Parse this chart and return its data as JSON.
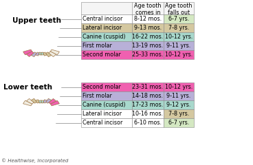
{
  "title_upper": "Upper teeth",
  "title_lower": "Lower teeth",
  "header_col1": "Age tooth\ncomes in",
  "header_col2": "Age tooth\nfalls out",
  "upper_teeth": [
    {
      "name": "Central incisor",
      "comes_in": "8-12 mos.",
      "falls_out": "6-7 yrs.",
      "name_color": "#ffffff",
      "comes_color": "#ffffff",
      "falls_color": "#d4e8c2"
    },
    {
      "name": "Lateral incisor",
      "comes_in": "9-13 mos.",
      "falls_out": "7-8 yrs.",
      "name_color": "#d4c8a0",
      "comes_color": "#d4c8a0",
      "falls_color": "#d4c8a0"
    },
    {
      "name": "Canine (cuspid)",
      "comes_in": "16-22 mos.",
      "falls_out": "10-12 yrs.",
      "name_color": "#a8d8cc",
      "comes_color": "#a8d8cc",
      "falls_color": "#a8d8cc"
    },
    {
      "name": "First molar",
      "comes_in": "13-19 mos.",
      "falls_out": "9-11 yrs.",
      "name_color": "#b8b0d8",
      "comes_color": "#b8b0d8",
      "falls_color": "#b8b0d8"
    },
    {
      "name": "Second molar",
      "comes_in": "25-33 mos.",
      "falls_out": "10-12 yrs.",
      "name_color": "#f060b0",
      "comes_color": "#f060b0",
      "falls_color": "#f060b0"
    }
  ],
  "lower_teeth": [
    {
      "name": "Second molar",
      "comes_in": "23-31 mos.",
      "falls_out": "10-12 yrs.",
      "name_color": "#f060b0",
      "comes_color": "#f060b0",
      "falls_color": "#f060b0"
    },
    {
      "name": "First molar",
      "comes_in": "14-18 mos.",
      "falls_out": "9-11 yrs.",
      "name_color": "#b8b0d8",
      "comes_color": "#b8b0d8",
      "falls_color": "#b8b0d8"
    },
    {
      "name": "Canine (cuspid)",
      "comes_in": "17-23 mos.",
      "falls_out": "9-12 yrs.",
      "name_color": "#a8d8cc",
      "comes_color": "#a8d8cc",
      "falls_color": "#a8d8cc"
    },
    {
      "name": "Lateral incisor",
      "comes_in": "10-16 mos.",
      "falls_out": "7-8 yrs.",
      "name_color": "#ffffff",
      "comes_color": "#ffffff",
      "falls_color": "#d4c8a0"
    },
    {
      "name": "Central incisor",
      "comes_in": "6-10 mos.",
      "falls_out": "6-7 yrs.",
      "name_color": "#ffffff",
      "comes_color": "#ffffff",
      "falls_color": "#d4e8c2"
    }
  ],
  "tooth_colors": [
    "#f060b0",
    "#f060b0",
    "#b8b0d8",
    "#b8b0d8",
    "#a8d8cc",
    "#a8d8cc",
    "#d4c8a0",
    "#d4c8a0",
    "#f0ece0",
    "#f0ece0"
  ],
  "tooth_edge_color": "#a07848",
  "bg_color": "#ffffff",
  "text_color": "#000000",
  "border_color": "#888888",
  "copyright": "© Healthwise, Incorporated",
  "font_size_title": 7.5,
  "font_size_header": 5.8,
  "font_size_table": 5.8,
  "font_size_copyright": 5.0
}
